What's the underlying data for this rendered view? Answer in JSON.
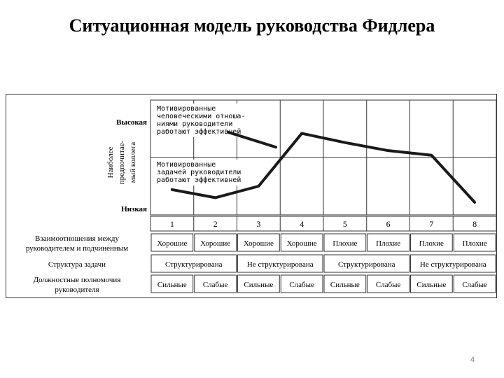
{
  "title": "Ситуационная модель руководства Фидлера",
  "chart_data": {
    "type": "line",
    "y_axis": {
      "label_lines": [
        "Наиболее",
        "предпочитае-",
        "мый коллега"
      ],
      "top_label": "Высокая",
      "bottom_label": "Низкая"
    },
    "annotations": [
      [
        "Мотивированные",
        "человеческими отноша-",
        "ниями руководители",
        "работают эффективней"
      ],
      [
        "Мотивированные",
        "задачей руководители",
        "работают эффективней"
      ]
    ],
    "situations": [
      "1",
      "2",
      "3",
      "4",
      "5",
      "6",
      "7",
      "8"
    ],
    "series": [
      {
        "points": [
          [
            1,
            22
          ],
          [
            2,
            15
          ],
          [
            3,
            25
          ],
          [
            4,
            71
          ],
          [
            5,
            63
          ],
          [
            6,
            56
          ],
          [
            7,
            52
          ],
          [
            8,
            11
          ]
        ]
      },
      {
        "points": [
          [
            2.3,
            72
          ],
          [
            3.4,
            59
          ]
        ]
      }
    ],
    "y_range": [
      0,
      100
    ],
    "rows": [
      {
        "label": [
          "Взаимоотношения между",
          "руководителем и подчиненным"
        ],
        "cells": [
          {
            "text": "Хорошие",
            "span": 1
          },
          {
            "text": "Хорошие",
            "span": 1
          },
          {
            "text": "Хорошие",
            "span": 1
          },
          {
            "text": "Хорошие",
            "span": 1
          },
          {
            "text": "Плохие",
            "span": 1
          },
          {
            "text": "Плохие",
            "span": 1
          },
          {
            "text": "Плохие",
            "span": 1
          },
          {
            "text": "Плохие",
            "span": 1
          }
        ]
      },
      {
        "label": [
          "Структура задачи"
        ],
        "cells": [
          {
            "text": "Структурирована",
            "span": 2
          },
          {
            "text": "Не структурирована",
            "span": 2
          },
          {
            "text": "Структурирована",
            "span": 2
          },
          {
            "text": "Не структурирована",
            "span": 2
          }
        ]
      },
      {
        "label": [
          "Должностные полномочия",
          "руководителя"
        ],
        "cells": [
          {
            "text": "Сильные",
            "span": 1
          },
          {
            "text": "Слабые",
            "span": 1
          },
          {
            "text": "Сильные",
            "span": 1
          },
          {
            "text": "Слабые",
            "span": 1
          },
          {
            "text": "Сильные",
            "span": 1
          },
          {
            "text": "Слабые",
            "span": 1
          },
          {
            "text": "Сильные",
            "span": 1
          },
          {
            "text": "Слабые",
            "span": 1
          }
        ]
      }
    ]
  },
  "slide_number": "4"
}
